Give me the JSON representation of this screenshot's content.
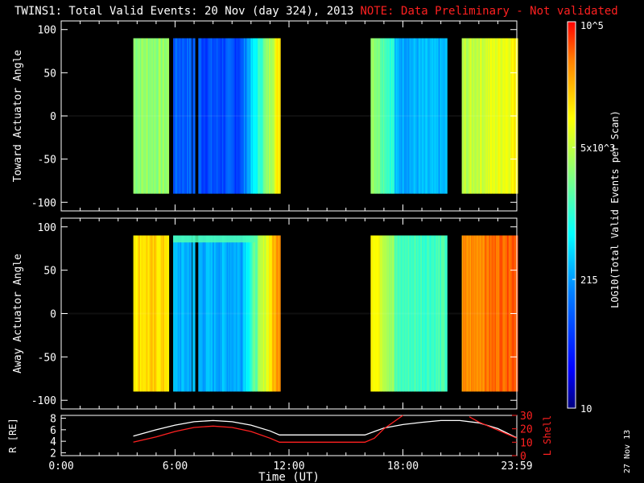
{
  "title": {
    "main": "TWINS1: Total Valid Events: 20 Nov (day 324), 2013",
    "note": "NOTE: Data Preliminary - Not validated"
  },
  "stamp": "27 Nov 13",
  "colors": {
    "background": "#000000",
    "axes": "#ffffff",
    "note": "#ff2020",
    "r_line": "#ffffff",
    "lshell_line": "#ff2020"
  },
  "chart_data": [
    {
      "type": "heatmap",
      "panel": "top",
      "ylabel": "Toward Actuator Angle",
      "ylim": [
        -110,
        110
      ],
      "yticks": [
        100,
        50,
        0,
        -50,
        -100
      ],
      "x_unit": "hours UT",
      "xlim": [
        0,
        24
      ],
      "angle_range": [
        -90,
        90
      ],
      "data_blocks_hours": [
        [
          3.8,
          5.6
        ],
        [
          5.9,
          11.5
        ],
        [
          16.3,
          20.3
        ],
        [
          21.1,
          24.0
        ]
      ],
      "gaps_hours": [
        [
          6.8,
          6.9
        ],
        [
          7.0,
          7.2
        ]
      ]
    },
    {
      "type": "heatmap",
      "panel": "middle",
      "ylabel": "Away Actuator Angle",
      "ylim": [
        -110,
        110
      ],
      "yticks": [
        100,
        50,
        0,
        -50,
        -100
      ],
      "x_unit": "hours UT",
      "xlim": [
        0,
        24
      ],
      "angle_range": [
        -90,
        90
      ],
      "data_blocks_hours": [
        [
          3.8,
          5.6
        ],
        [
          5.9,
          11.5
        ],
        [
          16.3,
          20.3
        ],
        [
          21.1,
          24.0
        ]
      ],
      "gaps_hours": [
        [
          6.8,
          6.9
        ],
        [
          7.0,
          7.2
        ]
      ]
    },
    {
      "type": "line",
      "panel": "bottom",
      "xlabel": "Time (UT)",
      "xticks": [
        "0:00",
        "6:00",
        "12:00",
        "18:00",
        "23:59"
      ],
      "xtick_hours": [
        0,
        6,
        12,
        18,
        24
      ],
      "xlim": [
        0,
        24
      ],
      "left_axis": {
        "label": "R [RE]",
        "ylim": [
          1.5,
          8.5
        ],
        "yticks": [
          2,
          4,
          6,
          8
        ]
      },
      "right_axis": {
        "label": "L Shell",
        "ylim": [
          0,
          30
        ],
        "yticks": [
          0,
          10,
          20,
          30
        ]
      },
      "series": [
        {
          "axis": "left",
          "x": [
            3.8,
            5.0,
            6.0,
            7.0,
            8.0,
            9.0,
            10.0,
            11.0,
            11.5,
            12.0,
            14.0,
            16.0,
            16.5,
            17.0,
            18.0,
            19.0,
            20.0,
            21.0,
            22.0,
            23.0,
            24.0
          ],
          "y": [
            4.9,
            6.0,
            6.8,
            7.4,
            7.6,
            7.4,
            6.8,
            5.8,
            5.1,
            5.1,
            5.1,
            5.1,
            5.7,
            6.3,
            6.9,
            7.3,
            7.6,
            7.6,
            7.2,
            6.2,
            4.6
          ]
        },
        {
          "axis": "right",
          "x": [
            3.8,
            5.0,
            6.0,
            7.0,
            8.0,
            9.0,
            10.0,
            11.0,
            11.5,
            12.0,
            14.0,
            16.0,
            16.5,
            17.0,
            18.0,
            21.0,
            21.5,
            22.0,
            23.0,
            24.0
          ],
          "y": [
            10,
            14,
            18,
            21,
            22,
            21,
            18,
            13,
            10,
            10,
            10,
            10,
            13,
            20,
            30,
            null,
            29,
            25,
            19,
            13
          ]
        }
      ]
    }
  ],
  "colorbar": {
    "label": "LOG10(Total Valid Events per Scan)",
    "labels": [
      {
        "value": 10,
        "text": "10"
      },
      {
        "value": 215,
        "text": "215"
      },
      {
        "value": 5000,
        "text": "5x10^3"
      },
      {
        "value": 100000,
        "text": "10^5"
      }
    ],
    "range": [
      10,
      100000
    ],
    "scale": "log"
  }
}
